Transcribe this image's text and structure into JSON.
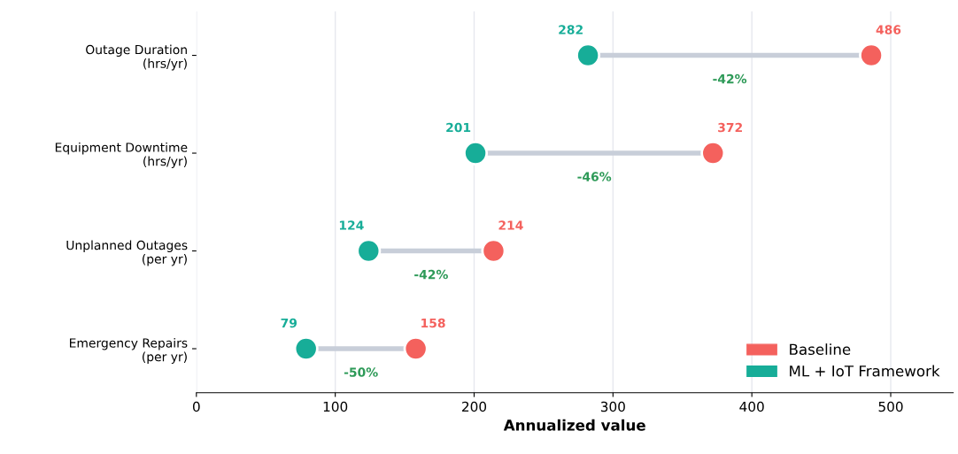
{
  "chart_data": {
    "type": "scatter",
    "orientation": "horizontal",
    "xlabel": "Annualized value",
    "categories": [
      "Outage Duration\n(hrs/yr)",
      "Equipment Downtime\n(hrs/yr)",
      "Unplanned Outages\n(per yr)",
      "Emergency Repairs\n(per yr)"
    ],
    "series": [
      {
        "name": "Baseline",
        "color": "#f4615d",
        "values": [
          486,
          372,
          214,
          158
        ],
        "value_labels": [
          "486",
          "372",
          "214",
          "158"
        ]
      },
      {
        "name": "ML + IoT Framework",
        "color": "#17ad98",
        "values": [
          282,
          201,
          124,
          79
        ],
        "value_labels": [
          "282",
          "201",
          "124",
          "79"
        ]
      }
    ],
    "annotations": [
      "-42%",
      "-46%",
      "-42%",
      "-50%"
    ],
    "xlim": [
      0,
      545
    ],
    "xticks": [
      0,
      100,
      200,
      300,
      400,
      500
    ],
    "grid": "x",
    "legend": "bottom right",
    "marker": "circle"
  }
}
